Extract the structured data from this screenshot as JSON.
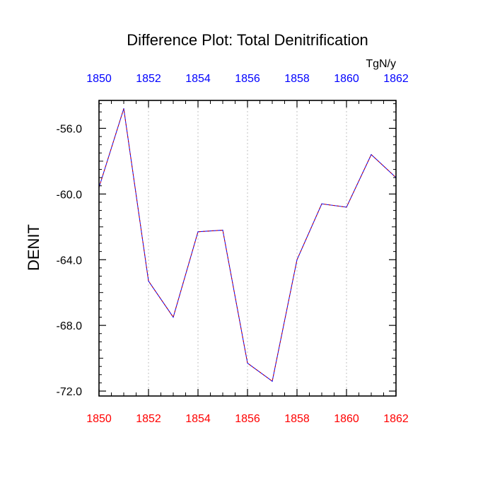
{
  "chart_data": {
    "type": "line",
    "title": "Difference Plot: Total Denitrification",
    "units": "TgN/y",
    "ylabel": "DENIT",
    "xlabel": "",
    "x": [
      1850,
      1851,
      1852,
      1853,
      1854,
      1855,
      1856,
      1857,
      1858,
      1859,
      1860,
      1861,
      1862
    ],
    "series": [
      {
        "values": [
          -59.6,
          -54.8,
          -65.3,
          -67.5,
          -62.3,
          -62.2,
          -70.3,
          -71.4,
          -64.0,
          -60.6,
          -60.8,
          -57.6,
          -59.0
        ]
      }
    ],
    "xlim": [
      1850,
      1862
    ],
    "ylim": [
      -72.3,
      -54.3
    ],
    "xticks_major": [
      1850,
      1852,
      1854,
      1856,
      1858,
      1860,
      1862
    ],
    "xtick_labels": [
      "1850",
      "1852",
      "1854",
      "1856",
      "1858",
      "1860",
      "1862"
    ],
    "yticks_major": [
      -56.0,
      -60.0,
      -64.0,
      -68.0,
      -72.0
    ],
    "ytick_labels": [
      "-56.0",
      "-60.0",
      "-64.0",
      "-68.0",
      "-72.0"
    ],
    "grid": "vertical-dotted",
    "colors": {
      "line_solid": "#0000ff",
      "line_dash": "#cc0000",
      "top_ticks": "#0000ff",
      "bottom_ticks": "#ff0000",
      "grid": "#c0c0c0",
      "axis": "#000000"
    }
  }
}
